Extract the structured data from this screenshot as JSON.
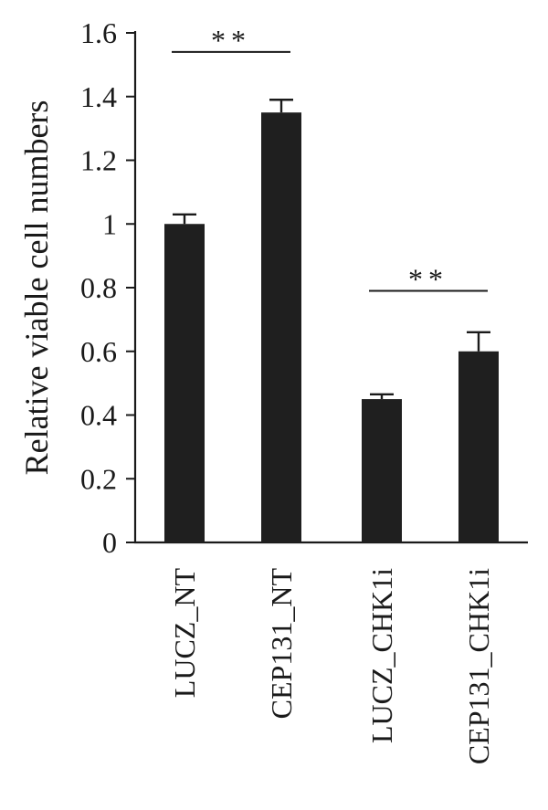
{
  "chart_data": {
    "type": "bar",
    "title": "",
    "xlabel": "",
    "ylabel": "Relative viable cell numbers",
    "ylim": [
      0,
      1.6
    ],
    "yticks": [
      {
        "value": 0,
        "label": "0"
      },
      {
        "value": 0.2,
        "label": "0.2"
      },
      {
        "value": 0.4,
        "label": "0.4"
      },
      {
        "value": 0.6,
        "label": "0.6"
      },
      {
        "value": 0.8,
        "label": "0.8"
      },
      {
        "value": 1.0,
        "label": "1"
      },
      {
        "value": 1.2,
        "label": "1.2"
      },
      {
        "value": 1.4,
        "label": "1.4"
      },
      {
        "value": 1.6,
        "label": "1.6"
      }
    ],
    "categories": [
      "LUCZ_NT",
      "CEP131_NT",
      "LUCZ_CHK1i",
      "CEP131_CHK1i"
    ],
    "values": [
      1.0,
      1.35,
      0.45,
      0.6
    ],
    "errors": [
      0.03,
      0.04,
      0.015,
      0.06
    ],
    "bar_color": "#1f1f1f",
    "significance": [
      {
        "from": 0,
        "to": 1,
        "y": 1.54,
        "label": "**"
      },
      {
        "from": 2,
        "to": 3,
        "y": 0.79,
        "label": "**"
      }
    ]
  }
}
